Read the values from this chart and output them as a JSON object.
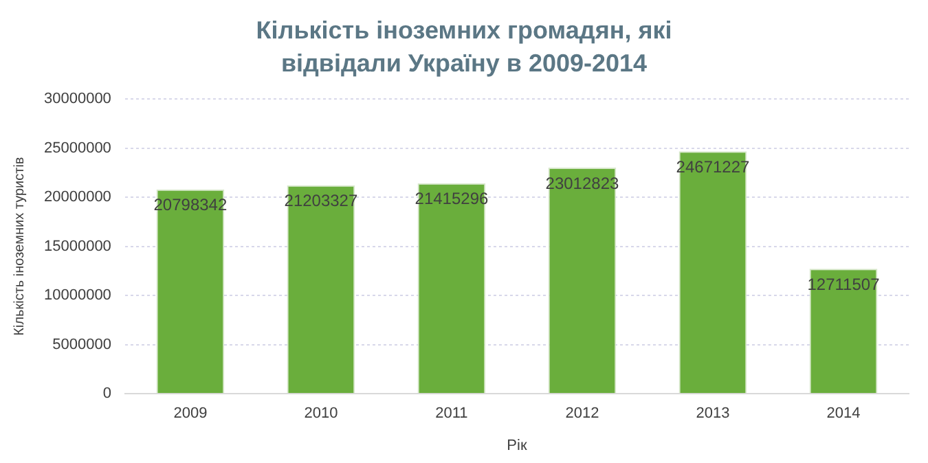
{
  "chart_data": {
    "type": "bar",
    "title": "Кількість іноземних громадян, які відвідали Україну в 2009-2014",
    "xlabel": "Рік",
    "ylabel": "Кількість іноземних туристів",
    "categories": [
      "2009",
      "2010",
      "2011",
      "2012",
      "2013",
      "2014"
    ],
    "values": [
      20798342,
      21203327,
      21415296,
      23012823,
      24671227,
      12711507
    ],
    "color": "#6aae3c",
    "ylim": [
      0,
      30000000
    ],
    "yticks": [
      0,
      5000000,
      10000000,
      15000000,
      20000000,
      25000000,
      30000000
    ],
    "grid": "y",
    "data_labels": true
  }
}
